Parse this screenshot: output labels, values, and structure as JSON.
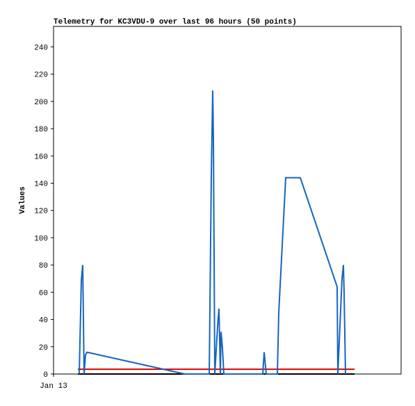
{
  "chart_data": {
    "type": "line",
    "title": "Telemetry for KC3VDU-9 over last 96 hours (50 points)",
    "y_label": "Values",
    "xlim": [
      0,
      100
    ],
    "xticks": [
      {
        "value": 0,
        "label": "Jan 13"
      }
    ],
    "ylim": [
      0,
      255
    ],
    "yticks": [
      0,
      20,
      40,
      60,
      80,
      100,
      120,
      140,
      160,
      180,
      200,
      220,
      240
    ],
    "grid": false,
    "series": [
      {
        "color": "#1565c0",
        "x": [
          7.4,
          8,
          8.4,
          8.6,
          8.8,
          9.2,
          9.6,
          37.8,
          44.8,
          45.4,
          45.8,
          46,
          46.4,
          47.2,
          47.6,
          48,
          48.2,
          48.6,
          49,
          60.2,
          60.6,
          61.2,
          64.4,
          64.8,
          66.8,
          71,
          81.6,
          81.8,
          83,
          83.4,
          83.6,
          84
        ],
        "values": [
          0,
          69,
          80,
          40,
          0,
          14,
          16,
          0,
          0,
          147,
          208,
          172,
          0,
          35,
          48,
          0,
          31,
          19,
          0,
          0,
          16,
          0,
          0,
          45,
          144,
          144,
          64,
          0,
          70,
          80,
          60,
          0
        ]
      },
      {
        "color": "#e00000",
        "x": [
          7,
          86.6
        ],
        "values": [
          3.5,
          3.5
        ]
      },
      {
        "color": "#000000",
        "x": [
          7,
          86.6
        ],
        "values": [
          0,
          0
        ]
      }
    ]
  }
}
